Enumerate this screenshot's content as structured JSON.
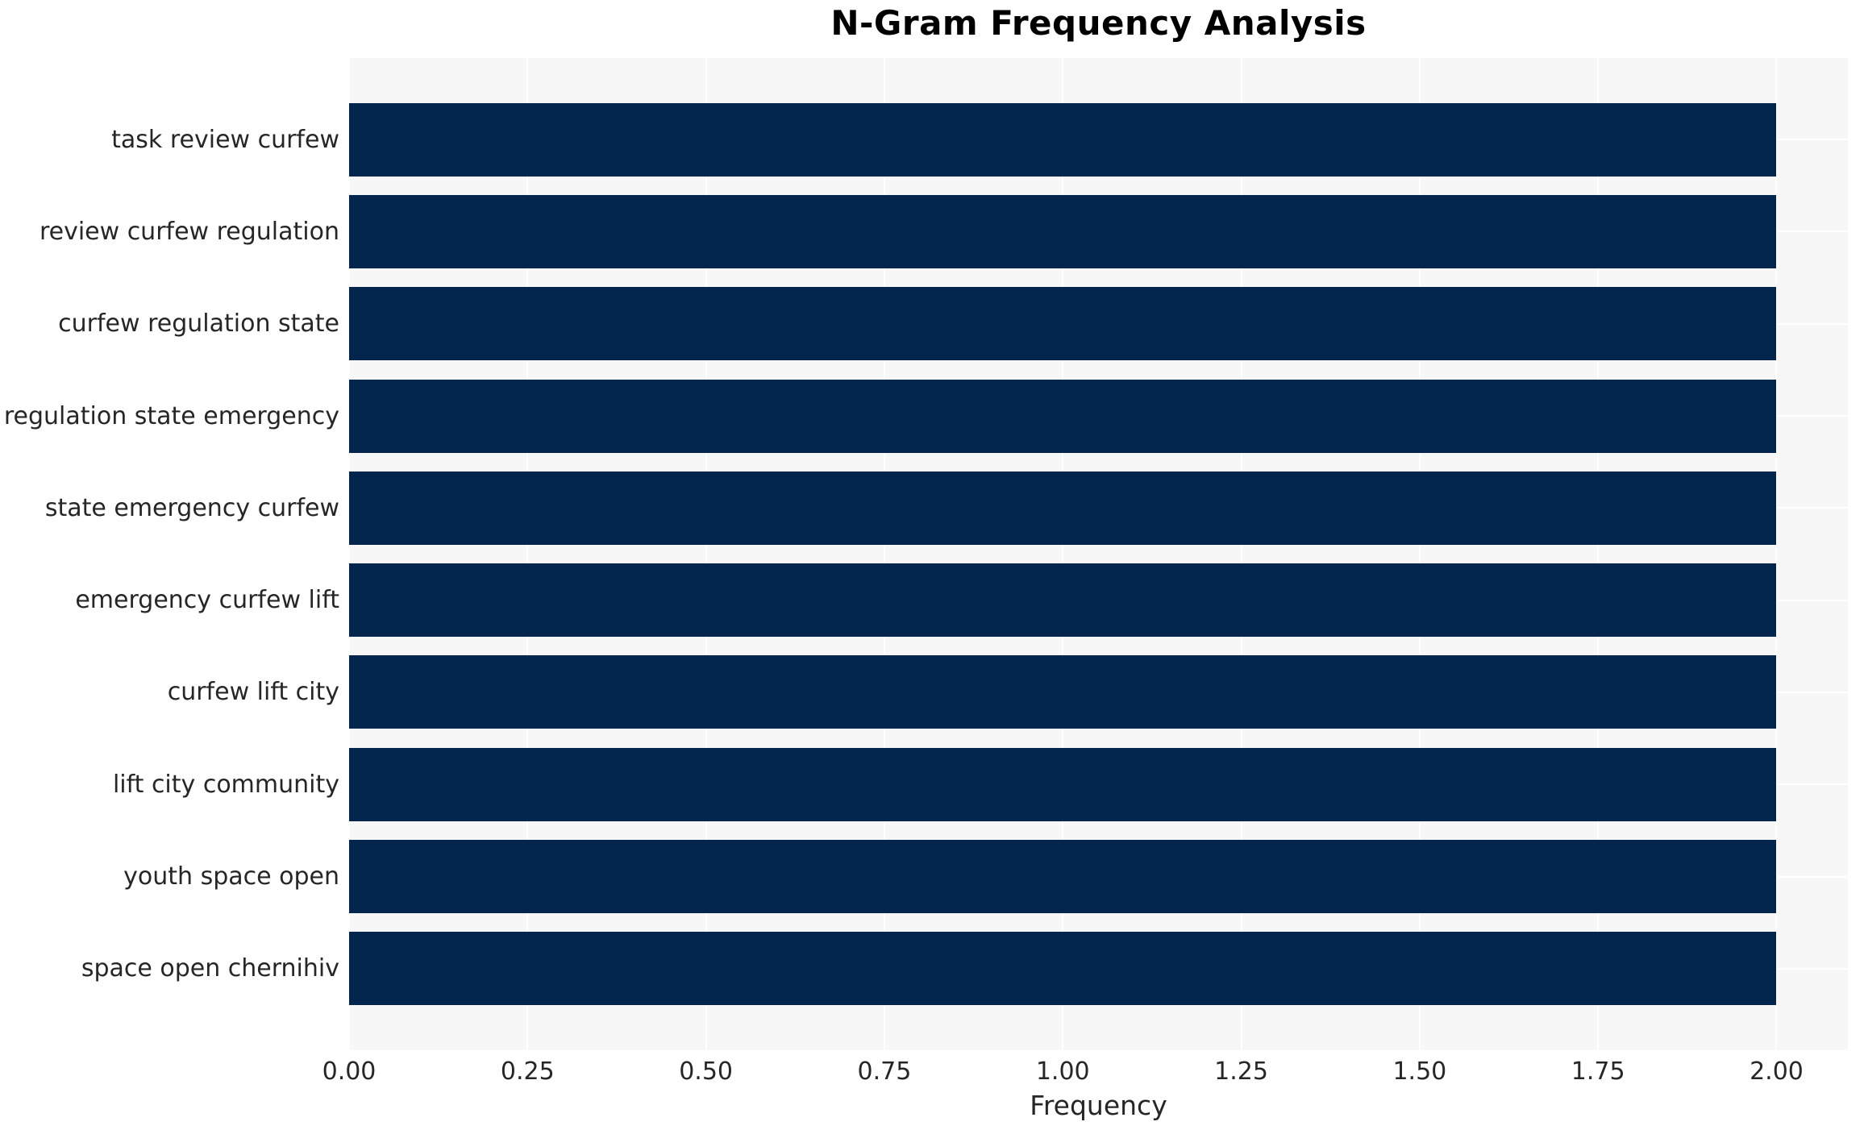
{
  "chart_data": {
    "type": "bar",
    "orientation": "horizontal",
    "title": "N-Gram Frequency Analysis",
    "xlabel": "Frequency",
    "ylabel": "",
    "categories": [
      "task review curfew",
      "review curfew regulation",
      "curfew regulation state",
      "regulation state emergency",
      "state emergency curfew",
      "emergency curfew lift",
      "curfew lift city",
      "lift city community",
      "youth space open",
      "space open chernihiv"
    ],
    "values": [
      2,
      2,
      2,
      2,
      2,
      2,
      2,
      2,
      2,
      2
    ],
    "xlim": [
      0,
      2.1
    ],
    "xtick_labels": [
      "0.00",
      "0.25",
      "0.50",
      "0.75",
      "1.00",
      "1.25",
      "1.50",
      "1.75",
      "2.00"
    ],
    "xtick_values": [
      0,
      0.25,
      0.5,
      0.75,
      1.0,
      1.25,
      1.5,
      1.75,
      2.0
    ],
    "grid": true,
    "legend_position": "none",
    "colors": {
      "bar": "#02254d",
      "plot_background": "#f7f7f7",
      "grid_line": "#ffffff",
      "tick_text": "#262626",
      "title_text": "#000000",
      "figure_background": "#ffffff"
    }
  }
}
